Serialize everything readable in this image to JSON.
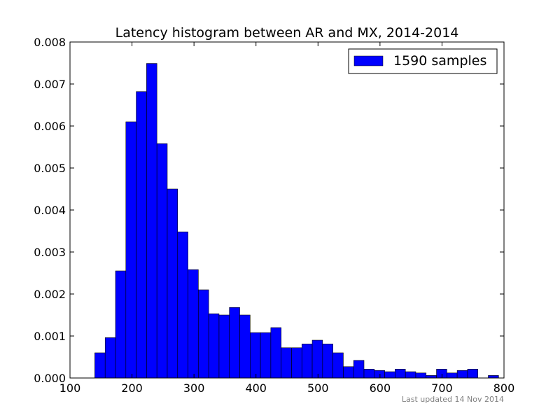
{
  "chart_data": {
    "type": "bar",
    "title": "Latency histogram between AR and MX, 2014-2014",
    "xlabel": "",
    "ylabel": "",
    "xlim": [
      100,
      800
    ],
    "ylim": [
      0,
      0.008
    ],
    "x_ticks": [
      "100",
      "200",
      "300",
      "400",
      "500",
      "600",
      "700",
      "800"
    ],
    "x_tick_values": [
      100,
      200,
      300,
      400,
      500,
      600,
      700,
      800
    ],
    "y_ticks": [
      "0.000",
      "0.001",
      "0.002",
      "0.003",
      "0.004",
      "0.005",
      "0.006",
      "0.007",
      "0.008"
    ],
    "y_tick_values": [
      0,
      0.001,
      0.002,
      0.003,
      0.004,
      0.005,
      0.006,
      0.007,
      0.008
    ],
    "grid": false,
    "legend_position": "top-right",
    "series": [
      {
        "name": "1590 samples",
        "color": "#0000ff",
        "bin_width": 16.7,
        "bin_starts": [
          140,
          156.7,
          173.4,
          190.1,
          206.8,
          223.5,
          240.2,
          256.9,
          273.6,
          290.3,
          307,
          323.7,
          340.4,
          357.1,
          373.8,
          390.5,
          407.2,
          423.9,
          440.6,
          457.3,
          474,
          490.7,
          507.4,
          524.1,
          540.8,
          557.5,
          574.2,
          590.9,
          607.6,
          624.3,
          641,
          657.7,
          674.4,
          691.1,
          707.8,
          724.5,
          741.2,
          774.6
        ],
        "values": [
          0.0006,
          0.00096,
          0.00255,
          0.0061,
          0.00682,
          0.00749,
          0.00558,
          0.0045,
          0.00348,
          0.00258,
          0.0021,
          0.00153,
          0.0015,
          0.00168,
          0.0015,
          0.00108,
          0.00108,
          0.0012,
          0.00072,
          0.00072,
          0.00081,
          0.0009,
          0.00081,
          0.0006,
          0.00027,
          0.00042,
          0.00021,
          0.00018,
          0.00015,
          0.00021,
          0.00015,
          0.00012,
          6e-05,
          0.00021,
          0.00012,
          0.00018,
          0.00021,
          6e-05
        ]
      }
    ],
    "footnote": "Last updated 14 Nov 2014"
  }
}
